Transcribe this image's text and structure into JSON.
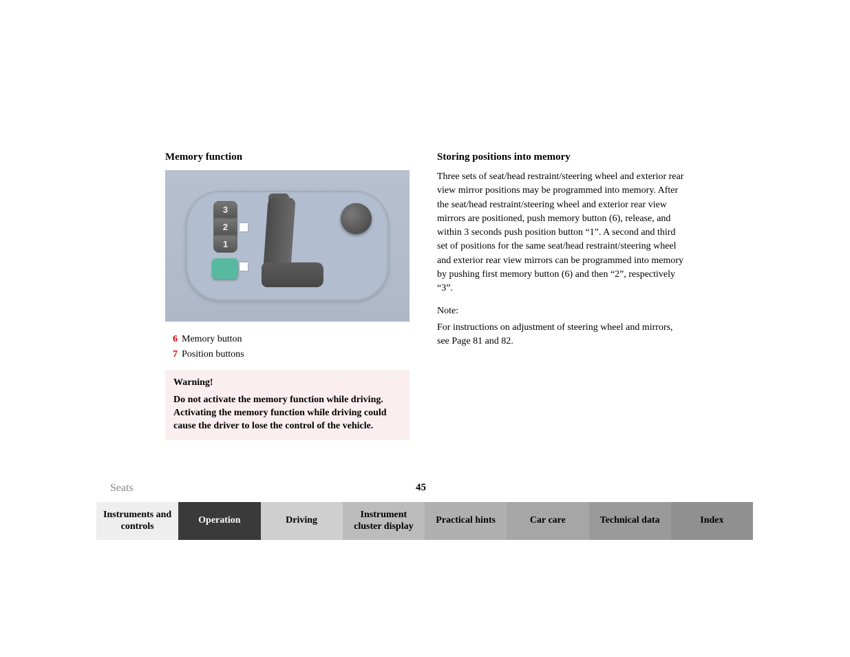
{
  "left": {
    "heading": "Memory function",
    "diagram": {
      "position_buttons": [
        "3",
        "2",
        "1"
      ],
      "memory_button_color": "#56b9a0",
      "panel_bg": "#b2becf"
    },
    "legend": [
      {
        "num": "6",
        "label": "Memory button"
      },
      {
        "num": "7",
        "label": "Position buttons"
      }
    ],
    "warning": {
      "title": "Warning!",
      "body": "Do not activate the memory function while driving. Activating the memory function while driving could cause the driver to lose the control of the vehicle.",
      "bg_color": "#faeef0"
    }
  },
  "right": {
    "heading": "Storing positions into memory",
    "body": "Three sets of seat/head restraint/steering wheel and exterior rear view mirror positions may be programmed into memory. After the seat/head restraint/steering wheel and exterior rear view mirrors are positioned, push memory button (6), release, and within 3 seconds push position button “1”. A second and third set of positions for the same seat/head restraint/steering wheel and exterior rear view mirrors can be programmed into memory by pushing first memory button (6) and then “2”, respectively “3”.",
    "note_label": "Note:",
    "note_body": "For instructions on adjustment of steering wheel and mirrors, see Page 81 and 82."
  },
  "footer": {
    "section": "Seats",
    "page_number": "45",
    "tabs": [
      {
        "label": "Instruments and controls",
        "bg": "#eeeeee",
        "color": "#000000"
      },
      {
        "label": "Operation",
        "bg": "#3a3a3a",
        "color": "#ffffff"
      },
      {
        "label": "Driving",
        "bg": "#cfcfcf",
        "color": "#000000"
      },
      {
        "label": "Instrument cluster display",
        "bg": "#bcbcbc",
        "color": "#000000"
      },
      {
        "label": "Practical hints",
        "bg": "#b0b0b0",
        "color": "#000000"
      },
      {
        "label": "Car care",
        "bg": "#a6a6a6",
        "color": "#000000"
      },
      {
        "label": "Technical data",
        "bg": "#9a9a9a",
        "color": "#000000"
      },
      {
        "label": "Index",
        "bg": "#909090",
        "color": "#000000"
      }
    ]
  },
  "colors": {
    "legend_num": "#d40000",
    "section_label": "#888888"
  }
}
